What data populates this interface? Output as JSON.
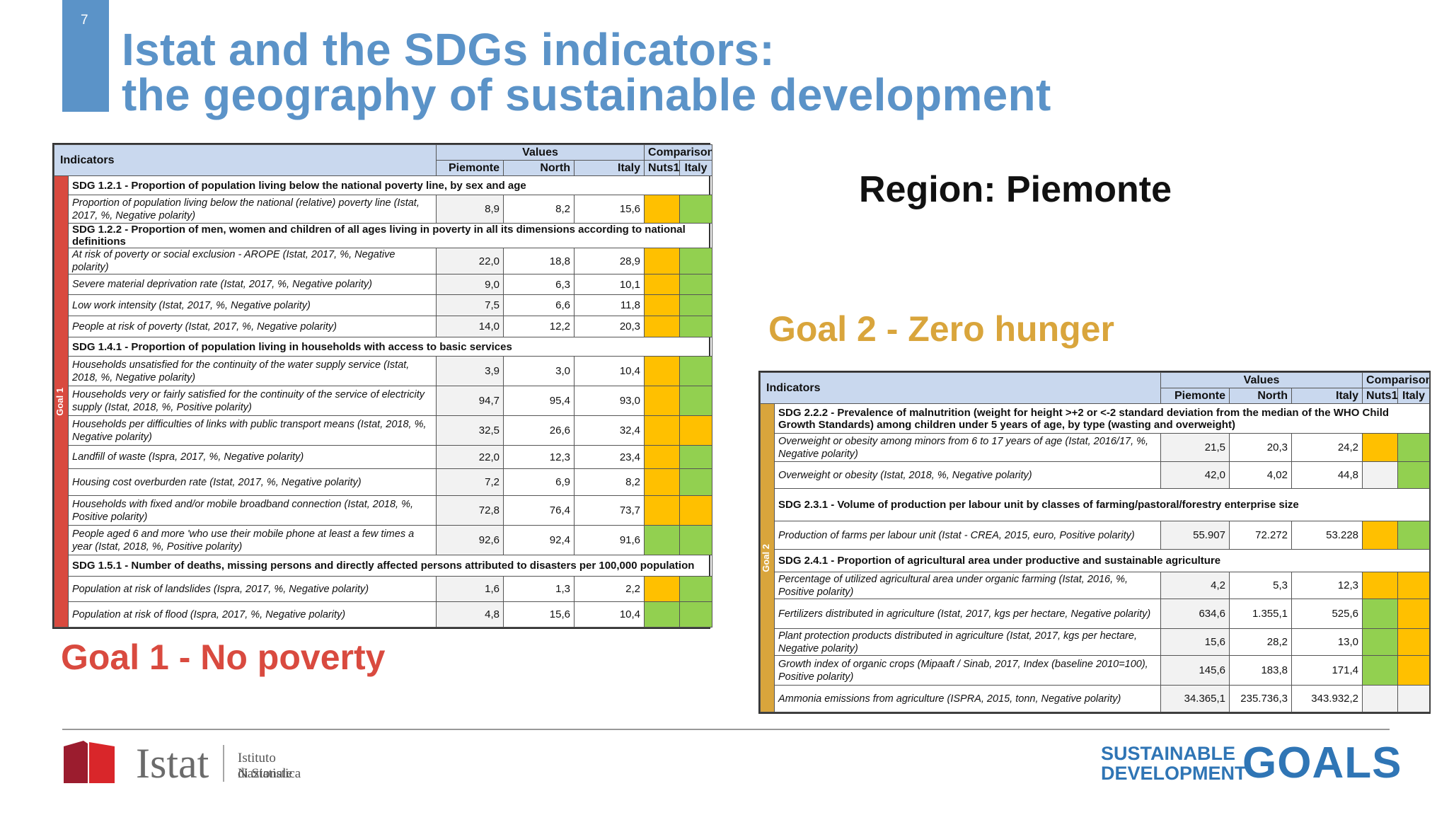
{
  "page_number": "7",
  "title": {
    "line1": "Istat and the SDGs indicators:",
    "line2": "the geography of sustainable development"
  },
  "region_label": "Region: Piemonte",
  "goal1_title": "Goal 1 - No poverty",
  "goal2_title": "Goal 2 - Zero hunger",
  "colors": {
    "orange": "#ffc000",
    "green": "#92d050",
    "goal1": "#d94a3f",
    "goal2": "#d9a53c",
    "accent": "#5b93c8"
  },
  "table_headers": {
    "indicators": "Indicators",
    "values": "Values",
    "comparison": "Comparison",
    "piemonte": "Piemonte",
    "north": "North",
    "italy": "Italy",
    "nuts1": "Nuts1",
    "italy_cmp": "Italy"
  },
  "table1": {
    "side_label": "Goal 1",
    "sections": [
      {
        "title": "SDG 1.2.1 - Proportion of population living below the national poverty line, by sex and age",
        "rows": [
          {
            "label": "Proportion of population living below the national (relative) poverty line (Istat, 2017, %, Negative polarity)",
            "piemonte": "8,9",
            "north": "8,2",
            "italy": "15,6",
            "nuts1": "orange",
            "italy_cmp": "green"
          }
        ]
      },
      {
        "title": "SDG 1.2.2 - Proportion of men, women and children of all ages living in poverty in all its dimensions according to national definitions",
        "rows": [
          {
            "label": "At risk of poverty or social exclusion - AROPE (Istat, 2017, %, Negative polarity)",
            "piemonte": "22,0",
            "north": "18,8",
            "italy": "28,9",
            "nuts1": "orange",
            "italy_cmp": "green"
          },
          {
            "label": "Severe material deprivation rate (Istat, 2017, %, Negative polarity)",
            "piemonte": "9,0",
            "north": "6,3",
            "italy": "10,1",
            "nuts1": "orange",
            "italy_cmp": "green"
          },
          {
            "label": "Low work intensity (Istat, 2017, %, Negative polarity)",
            "piemonte": "7,5",
            "north": "6,6",
            "italy": "11,8",
            "nuts1": "orange",
            "italy_cmp": "green"
          },
          {
            "label": "People at risk of poverty (Istat, 2017, %, Negative polarity)",
            "piemonte": "14,0",
            "north": "12,2",
            "italy": "20,3",
            "nuts1": "orange",
            "italy_cmp": "green"
          }
        ]
      },
      {
        "title": "SDG 1.4.1 - Proportion of population living in households with access to basic services",
        "rows": [
          {
            "label": "Households unsatisfied for the continuity of the water supply service (Istat, 2018, %, Negative polarity)",
            "piemonte": "3,9",
            "north": "3,0",
            "italy": "10,4",
            "nuts1": "orange",
            "italy_cmp": "green"
          },
          {
            "label": "Households very or fairly satisfied for the continuity of the service of electricity supply (Istat, 2018, %, Positive polarity)",
            "piemonte": "94,7",
            "north": "95,4",
            "italy": "93,0",
            "nuts1": "orange",
            "italy_cmp": "green"
          },
          {
            "label": "Households per difficulties of links with public transport means (Istat, 2018, %, Negative polarity)",
            "piemonte": "32,5",
            "north": "26,6",
            "italy": "32,4",
            "nuts1": "orange",
            "italy_cmp": "orange"
          },
          {
            "label": "Landfill of waste (Ispra, 2017, %, Negative polarity)",
            "piemonte": "22,0",
            "north": "12,3",
            "italy": "23,4",
            "nuts1": "orange",
            "italy_cmp": "green"
          },
          {
            "label": "Housing cost overburden rate (Istat, 2017, %, Negative polarity)",
            "piemonte": "7,2",
            "north": "6,9",
            "italy": "8,2",
            "nuts1": "orange",
            "italy_cmp": "green"
          },
          {
            "label": "Households with fixed and/or mobile broadband connection (Istat, 2018, %, Positive polarity)",
            "piemonte": "72,8",
            "north": "76,4",
            "italy": "73,7",
            "nuts1": "orange",
            "italy_cmp": "orange"
          },
          {
            "label": "People aged 6 and more 'who use their mobile phone at least a few times a year (Istat, 2018, %, Positive polarity)",
            "piemonte": "92,6",
            "north": "92,4",
            "italy": "91,6",
            "nuts1": "green",
            "italy_cmp": "green"
          }
        ]
      },
      {
        "title": "SDG 1.5.1 - Number of deaths, missing persons and directly affected persons attributed to disasters per 100,000 population",
        "rows": [
          {
            "label": "Population at risk of landslides (Ispra, 2017, %, Negative polarity)",
            "piemonte": "1,6",
            "north": "1,3",
            "italy": "2,2",
            "nuts1": "orange",
            "italy_cmp": "green"
          },
          {
            "label": "Population at risk of flood  (Ispra, 2017, %, Negative polarity)",
            "piemonte": "4,8",
            "north": "15,6",
            "italy": "10,4",
            "nuts1": "green",
            "italy_cmp": "green"
          }
        ]
      }
    ]
  },
  "table2": {
    "side_label": "Goal 2",
    "sections": [
      {
        "title": "SDG 2.2.2 - Prevalence of malnutrition (weight for height >+2 or <-2 standard deviation from the median of the WHO Child Growth Standards) among children under 5 years of age, by type (wasting and overweight)",
        "rows": [
          {
            "label": "Overweight or obesity among minors from 6 to 17 years of age (Istat, 2016/17, %, Negative polarity)",
            "piemonte": "21,5",
            "north": "20,3",
            "italy": "24,2",
            "nuts1": "orange",
            "italy_cmp": "green"
          },
          {
            "label": "Overweight or obesity (Istat, 2018, %, Negative polarity)",
            "piemonte": "42,0",
            "north": "4,02",
            "italy": "44,8",
            "nuts1": "empty",
            "italy_cmp": "green"
          }
        ]
      },
      {
        "title": "SDG 2.3.1 - Volume of production per labour unit by classes of farming/pastoral/forestry enterprise size",
        "rows": [
          {
            "label": "Production of farms per labour unit (Istat - CREA, 2015, euro, Positive polarity)",
            "piemonte": "55.907",
            "north": "72.272",
            "italy": "53.228",
            "nuts1": "orange",
            "italy_cmp": "green"
          }
        ]
      },
      {
        "title": "SDG 2.4.1 - Proportion of agricultural area under productive and sustainable agriculture",
        "rows": [
          {
            "label": "Percentage of utilized agricultural area under organic farming (Istat, 2016, %, Positive polarity)",
            "piemonte": "4,2",
            "north": "5,3",
            "italy": "12,3",
            "nuts1": "orange",
            "italy_cmp": "orange"
          },
          {
            "label": "Fertilizers distributed in agriculture (Istat, 2017, kgs per hectare, Negative polarity)",
            "piemonte": "634,6",
            "north": "1.355,1",
            "italy": "525,6",
            "nuts1": "green",
            "italy_cmp": "orange"
          },
          {
            "label": "Plant protection products distributed in agriculture (Istat, 2017, kgs per hectare, Negative polarity)",
            "piemonte": "15,6",
            "north": "28,2",
            "italy": "13,0",
            "nuts1": "green",
            "italy_cmp": "orange"
          },
          {
            "label": "Growth index of organic crops (Mipaaft / Sinab, 2017, Index (baseline 2010=100), Positive polarity)",
            "piemonte": "145,6",
            "north": "183,8",
            "italy": "171,4",
            "nuts1": "green",
            "italy_cmp": "orange"
          },
          {
            "label": "Ammonia emissions from agriculture (ISPRA, 2015, tonn, Negative polarity)",
            "piemonte": "34.365,1",
            "north": "235.736,3",
            "italy": "343.932,2",
            "nuts1": "empty",
            "italy_cmp": "empty"
          }
        ]
      }
    ]
  },
  "istat_logo": {
    "name": "Istat",
    "line1": "Istituto Nazionale",
    "line2": "di Statistica"
  },
  "sdg_logo": {
    "line1": "SUSTAINABLE",
    "line2": "DEVELOPMENT",
    "word": "GOALS"
  }
}
